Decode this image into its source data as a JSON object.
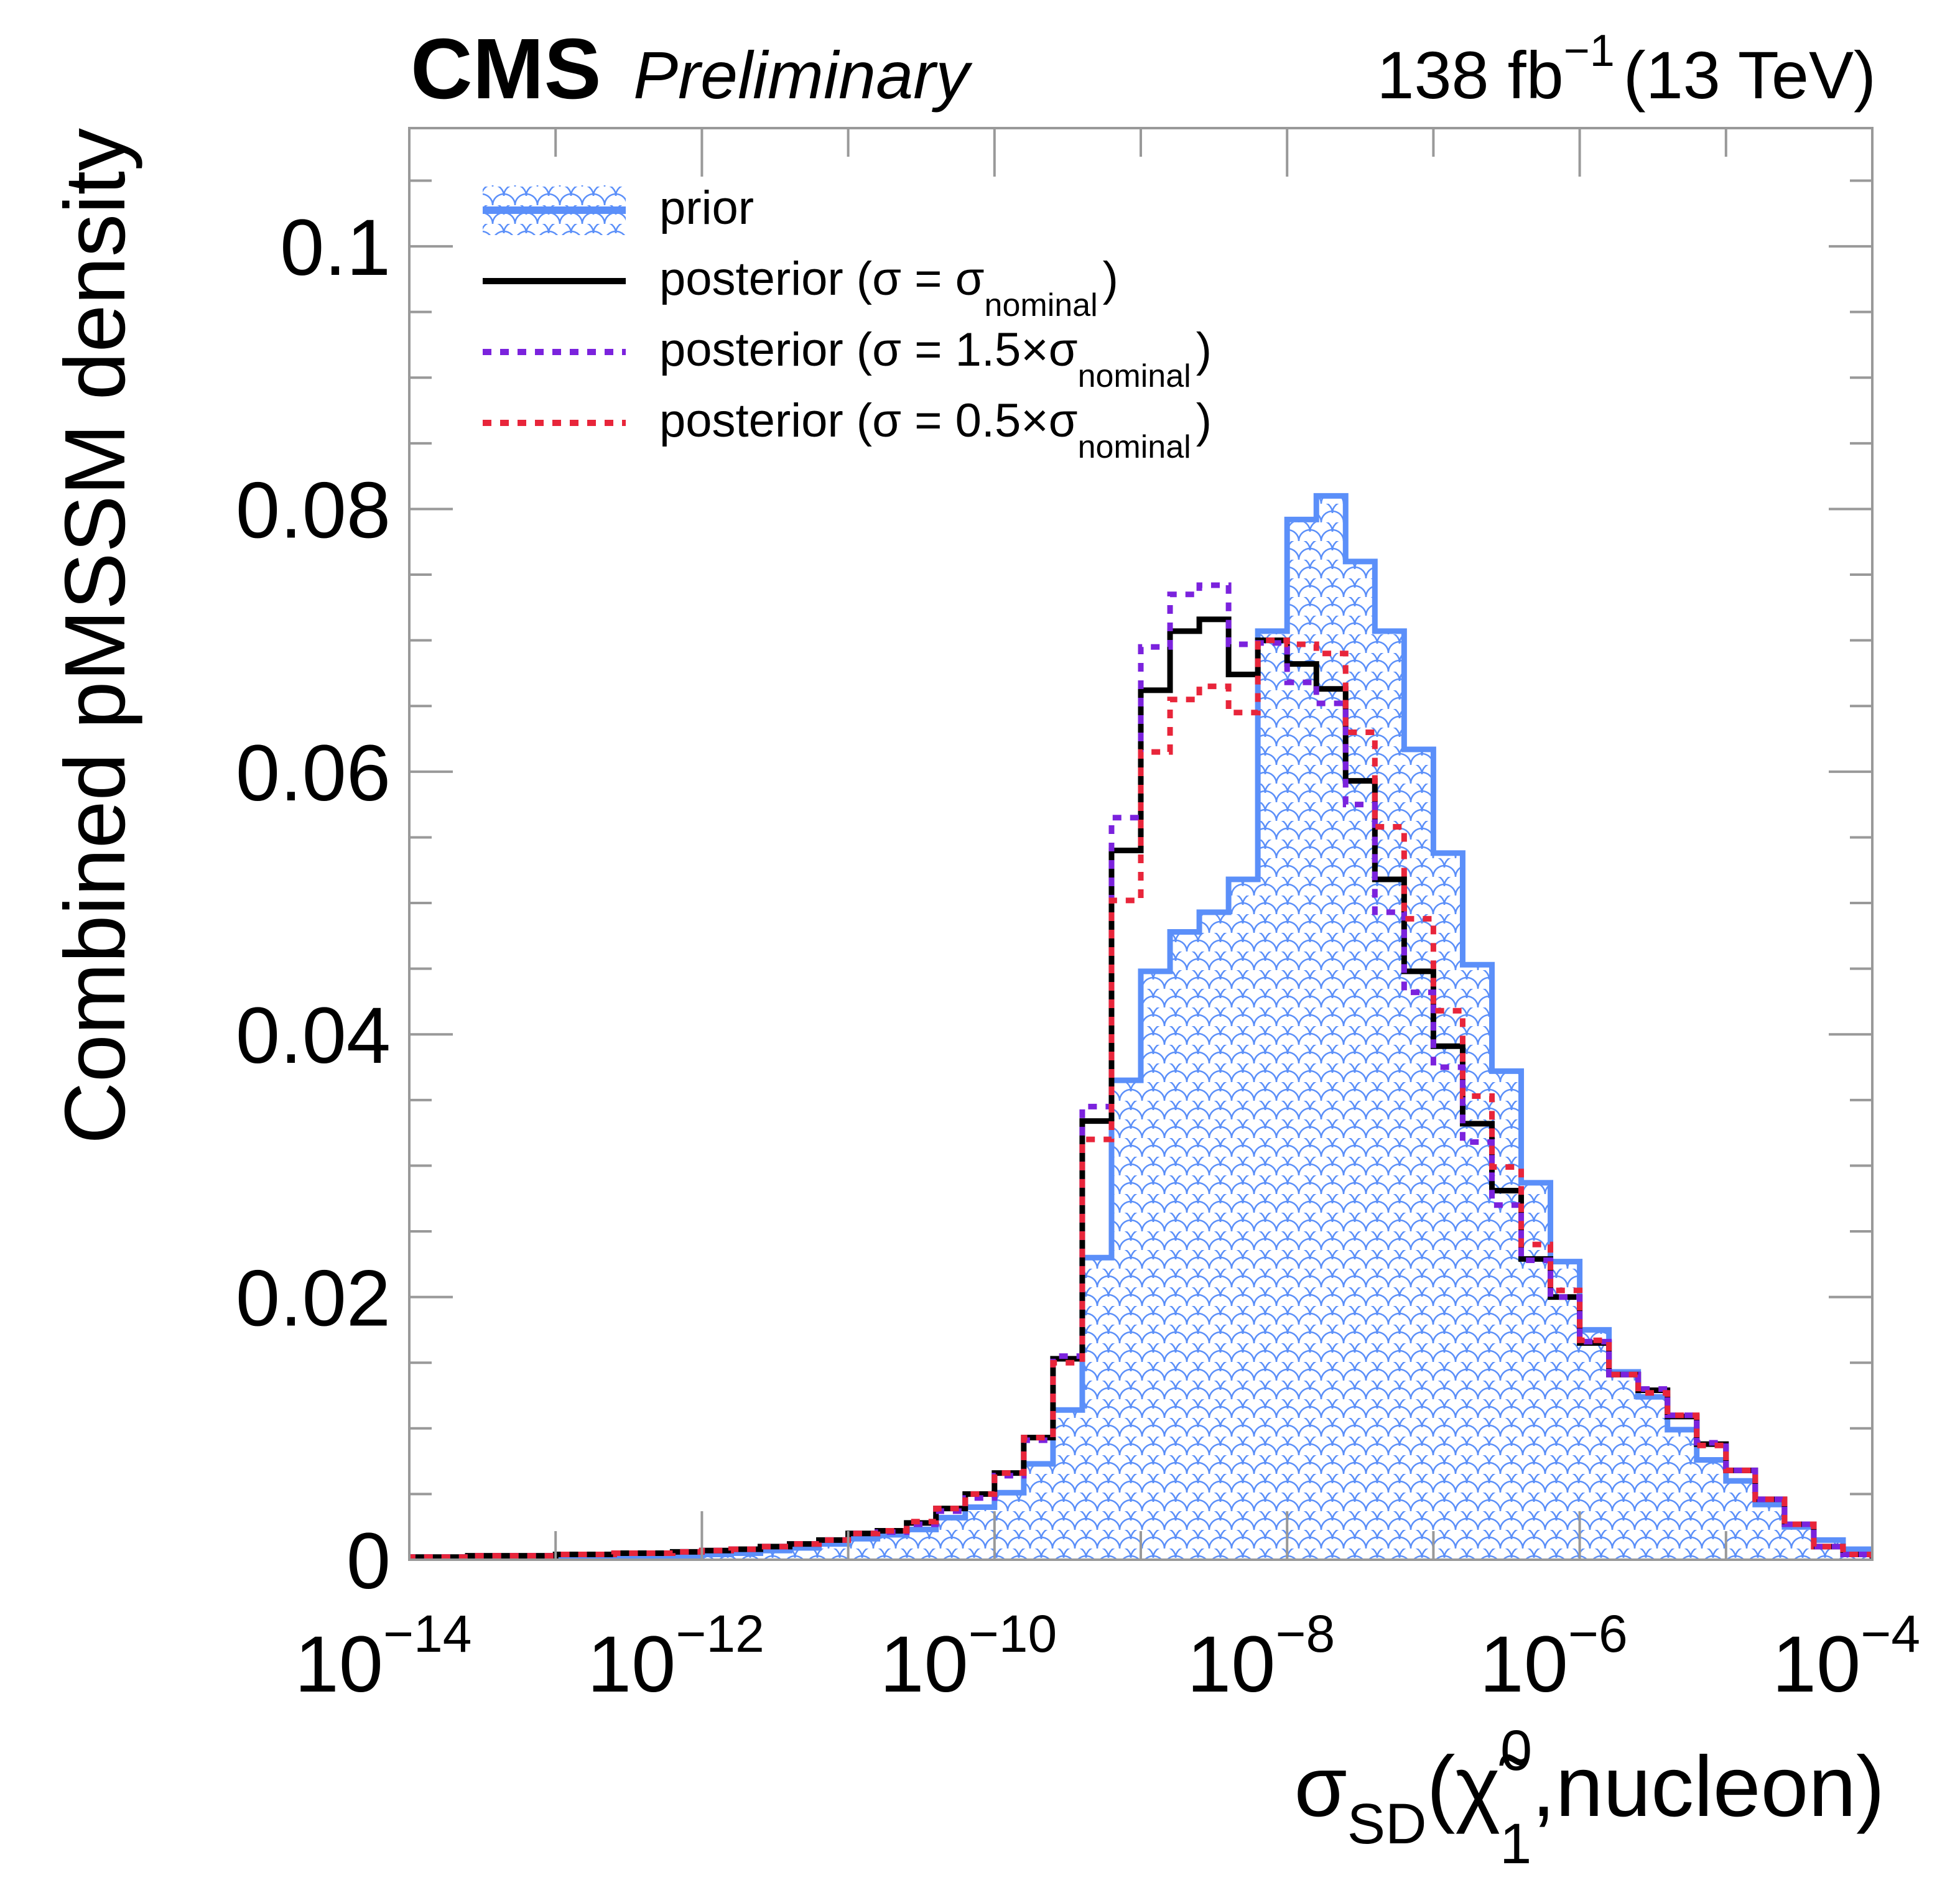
{
  "chart_data": {
    "type": "histogram",
    "title_left_bold": "CMS",
    "title_left_italic": "Preliminary",
    "title_right": {
      "lumi": "138 fb",
      "lumi_exp": "−1",
      "energy": "(13 TeV)"
    },
    "xlabel": {
      "main": "σ",
      "sub": "SD",
      "paren_open": "(",
      "chi": "χ̃",
      "chi_sup": "0",
      "chi_sub": "1",
      "rest": ",nucleon)"
    },
    "ylabel": "Combined pMSSM density",
    "x_scale": "log",
    "xlim_log10": [
      -14,
      -4
    ],
    "ylim": [
      0,
      0.109
    ],
    "x_ticks": [
      {
        "base": "10",
        "exp": "−14",
        "log10": -14
      },
      {
        "base": "10",
        "exp": "−12",
        "log10": -12
      },
      {
        "base": "10",
        "exp": "−10",
        "log10": -10
      },
      {
        "base": "10",
        "exp": "−8",
        "log10": -8
      },
      {
        "base": "10",
        "exp": "−6",
        "log10": -6
      },
      {
        "base": "10",
        "exp": "−4",
        "log10": -4
      }
    ],
    "y_ticks": [
      {
        "label": "0",
        "value": 0
      },
      {
        "label": "0.02",
        "value": 0.02
      },
      {
        "label": "0.04",
        "value": 0.04
      },
      {
        "label": "0.06",
        "value": 0.06
      },
      {
        "label": "0.08",
        "value": 0.08
      },
      {
        "label": "0.1",
        "value": 0.1
      }
    ],
    "bins": {
      "n": 50,
      "log10_start": -14,
      "log10_width": 0.2
    },
    "series": [
      {
        "name": "prior",
        "style": "filled-hatched",
        "color": "#5b8ff9",
        "values": [
          0.0001,
          0.0001,
          0.0001,
          0.0001,
          0.0002,
          0.0002,
          0.0002,
          0.0003,
          0.0003,
          0.0003,
          0.0004,
          0.0005,
          0.0007,
          0.0009,
          0.0012,
          0.0016,
          0.0019,
          0.0023,
          0.0032,
          0.004,
          0.0051,
          0.0073,
          0.0114,
          0.023,
          0.0365,
          0.0448,
          0.0478,
          0.0493,
          0.0518,
          0.0707,
          0.0792,
          0.081,
          0.076,
          0.0707,
          0.0617,
          0.0538,
          0.0453,
          0.0372,
          0.0287,
          0.0227,
          0.0175,
          0.0143,
          0.0124,
          0.0099,
          0.0076,
          0.006,
          0.0042,
          0.0025,
          0.0015,
          0.0008
        ]
      },
      {
        "name": "posterior (σ = σ_nominal)",
        "style": "solid",
        "color": "#000000",
        "values": [
          0.0002,
          0.0002,
          0.0003,
          0.0003,
          0.0003,
          0.0004,
          0.0004,
          0.0005,
          0.0005,
          0.0006,
          0.0007,
          0.0008,
          0.001,
          0.0012,
          0.0015,
          0.002,
          0.0022,
          0.0028,
          0.0039,
          0.005,
          0.0066,
          0.0093,
          0.0153,
          0.0334,
          0.054,
          0.0662,
          0.0707,
          0.0716,
          0.0674,
          0.07,
          0.0682,
          0.0663,
          0.0593,
          0.0518,
          0.0448,
          0.0391,
          0.0332,
          0.0281,
          0.0229,
          0.02,
          0.0165,
          0.0141,
          0.0129,
          0.0109,
          0.0088,
          0.0068,
          0.0046,
          0.0027,
          0.001,
          0.0004
        ]
      },
      {
        "name": "posterior (σ = 1.5×σ_nominal)",
        "style": "dashed",
        "color": "#7b22dd",
        "values": [
          0.0002,
          0.0002,
          0.0003,
          0.0003,
          0.0003,
          0.0004,
          0.0004,
          0.0005,
          0.0005,
          0.0006,
          0.0007,
          0.0008,
          0.001,
          0.0012,
          0.0015,
          0.002,
          0.0021,
          0.0027,
          0.0037,
          0.0047,
          0.0064,
          0.0091,
          0.0155,
          0.0345,
          0.0565,
          0.0695,
          0.0735,
          0.0742,
          0.0697,
          0.0698,
          0.0668,
          0.0652,
          0.0575,
          0.0493,
          0.0432,
          0.0375,
          0.0318,
          0.027,
          0.0228,
          0.02,
          0.0166,
          0.0141,
          0.013,
          0.011,
          0.0089,
          0.0068,
          0.0046,
          0.0027,
          0.001,
          0.0004
        ]
      },
      {
        "name": "posterior (σ = 0.5×σ_nominal)",
        "style": "dashed",
        "color": "#e8253a",
        "values": [
          0.0002,
          0.0002,
          0.0003,
          0.0003,
          0.0003,
          0.0004,
          0.0004,
          0.0005,
          0.0005,
          0.0006,
          0.0007,
          0.0008,
          0.001,
          0.0012,
          0.0015,
          0.002,
          0.0022,
          0.0029,
          0.0039,
          0.005,
          0.0066,
          0.0093,
          0.015,
          0.032,
          0.0502,
          0.0615,
          0.0655,
          0.0665,
          0.0645,
          0.07,
          0.0697,
          0.069,
          0.063,
          0.0558,
          0.0488,
          0.0418,
          0.0353,
          0.0299,
          0.024,
          0.0205,
          0.0167,
          0.0141,
          0.0127,
          0.011,
          0.0087,
          0.0068,
          0.0046,
          0.0027,
          0.001,
          0.0004
        ]
      }
    ],
    "legend": {
      "placement": "top-left",
      "entries": [
        {
          "text": "prior",
          "sub": "",
          "tail": ""
        },
        {
          "text": "posterior (σ = σ",
          "sub": "nominal",
          "tail": ")"
        },
        {
          "text": "posterior (σ = 1.5×σ",
          "sub": "nominal",
          "tail": ")"
        },
        {
          "text": "posterior (σ = 0.5×σ",
          "sub": "nominal",
          "tail": ")"
        }
      ]
    },
    "grid": false
  }
}
